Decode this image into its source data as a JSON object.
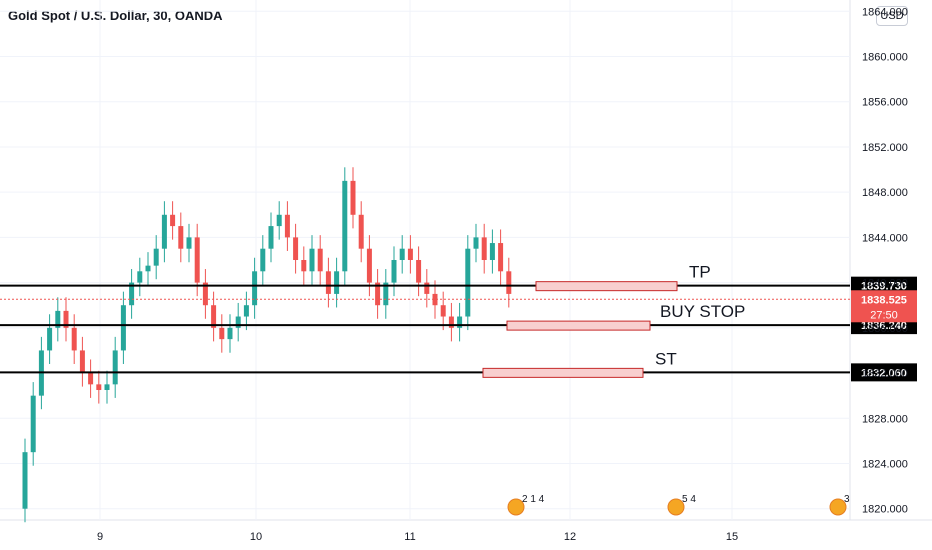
{
  "header": {
    "title": "Gold Spot / U.S. Dollar, 30, OANDA",
    "currency_button": "USD"
  },
  "colors": {
    "up": "#26a69a",
    "down": "#ef5350",
    "level": "#000000",
    "box_fill": "#f8cfcf",
    "box_stroke": "#c62828",
    "price_tag": "#ef5350",
    "grid": "#f0f3fa"
  },
  "chart_data": {
    "type": "candlestick",
    "title": "Gold Spot / U.S. Dollar, 30, OANDA",
    "ylim": [
      1819,
      1865
    ],
    "y_ticks": [
      "1820.000",
      "1824.000",
      "1828.000",
      "1832.000",
      "1836.000",
      "1840.000",
      "1844.000",
      "1848.000",
      "1852.000",
      "1856.000",
      "1860.000",
      "1864.000"
    ],
    "x_ticks": [
      "9",
      "10",
      "11",
      "12",
      "15"
    ],
    "levels": [
      {
        "label": "TP",
        "price": 1839.73,
        "price_label": "1839.730"
      },
      {
        "label": "BUY STOP",
        "price": 1836.24,
        "price_label": "1836.240"
      },
      {
        "label": "ST",
        "price": 1832.06,
        "price_label": "1832.060"
      }
    ],
    "current_price": {
      "price": 1838.525,
      "label": "1838.525",
      "countdown": "27:50"
    },
    "series": [
      {
        "name": "",
        "points": [
          [
            0,
            1820,
            1825
          ],
          [
            1,
            1825,
            1830
          ],
          [
            2,
            1830,
            1834
          ],
          [
            3,
            1834,
            1836
          ],
          [
            4,
            1836,
            1837.5
          ],
          [
            5,
            1837.5,
            1836
          ],
          [
            6,
            1836,
            1834
          ],
          [
            7,
            1834,
            1832
          ],
          [
            8,
            1832,
            1831
          ],
          [
            9,
            1831,
            1830.5
          ],
          [
            10,
            1830.5,
            1831
          ],
          [
            11,
            1831,
            1834
          ],
          [
            12,
            1834,
            1838
          ],
          [
            13,
            1838,
            1840
          ],
          [
            14,
            1840,
            1841
          ],
          [
            15,
            1841,
            1841.5
          ],
          [
            16,
            1841.5,
            1843
          ],
          [
            17,
            1843,
            1846
          ],
          [
            18,
            1846,
            1845
          ],
          [
            19,
            1845,
            1843
          ],
          [
            20,
            1843,
            1844
          ],
          [
            21,
            1844,
            1840
          ],
          [
            22,
            1840,
            1838
          ],
          [
            23,
            1838,
            1836
          ],
          [
            24,
            1836,
            1835
          ],
          [
            25,
            1835,
            1836
          ],
          [
            26,
            1836,
            1837
          ],
          [
            27,
            1837,
            1838
          ],
          [
            28,
            1838,
            1841
          ],
          [
            29,
            1841,
            1843
          ],
          [
            30,
            1843,
            1845
          ],
          [
            31,
            1845,
            1846
          ],
          [
            32,
            1846,
            1844
          ],
          [
            33,
            1844,
            1842
          ],
          [
            34,
            1842,
            1841
          ],
          [
            35,
            1841,
            1843
          ],
          [
            36,
            1843,
            1841
          ],
          [
            37,
            1841,
            1839
          ],
          [
            38,
            1839,
            1841
          ],
          [
            39,
            1841,
            1849
          ],
          [
            40,
            1849,
            1846
          ],
          [
            41,
            1846,
            1843
          ],
          [
            42,
            1843,
            1840
          ],
          [
            43,
            1840,
            1838
          ],
          [
            44,
            1838,
            1840
          ],
          [
            45,
            1840,
            1842
          ],
          [
            46,
            1842,
            1843
          ],
          [
            47,
            1843,
            1842
          ],
          [
            48,
            1842,
            1840
          ],
          [
            49,
            1840,
            1839
          ],
          [
            50,
            1839,
            1838
          ],
          [
            51,
            1838,
            1837
          ],
          [
            52,
            1837,
            1836
          ],
          [
            53,
            1836,
            1837
          ],
          [
            54,
            1837,
            1843
          ],
          [
            55,
            1843,
            1844
          ],
          [
            56,
            1844,
            1842
          ],
          [
            57,
            1842,
            1843.5
          ],
          [
            58,
            1843.5,
            1841
          ],
          [
            59,
            1841,
            1839
          ]
        ],
        "o_h_l_c_from_point": "open,close"
      }
    ],
    "event_markers": [
      {
        "label": "2 1 4"
      },
      {
        "label": "5 4"
      },
      {
        "label": "3"
      }
    ]
  }
}
